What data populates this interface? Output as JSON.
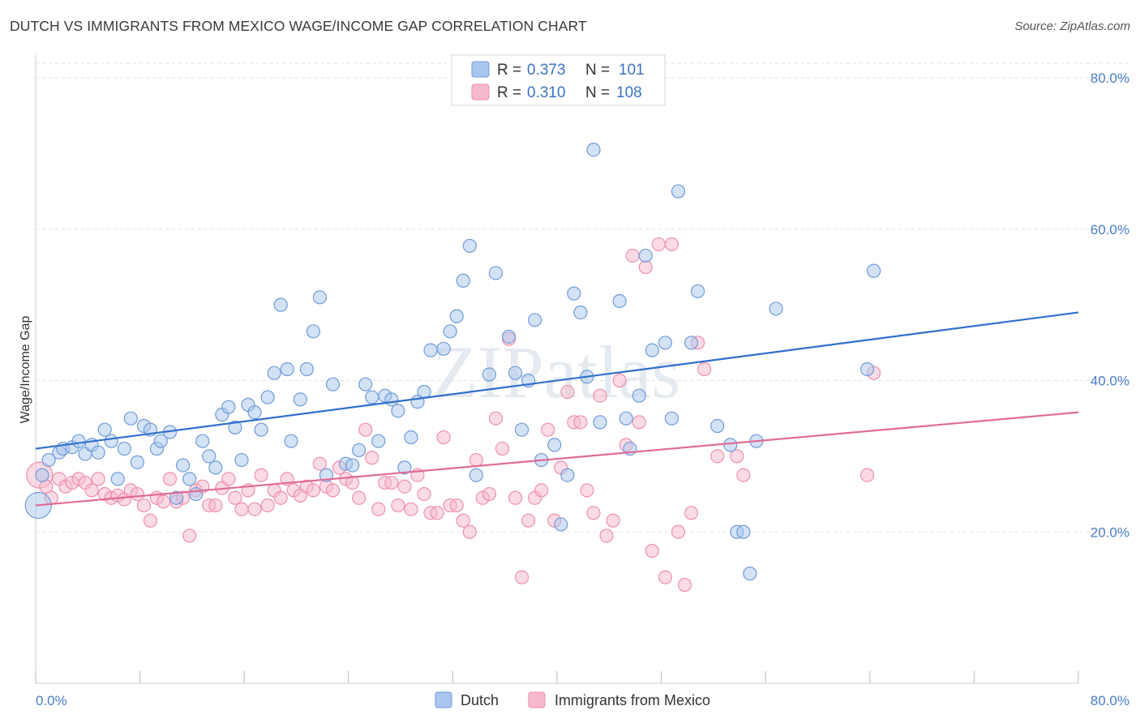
{
  "title": "DUTCH VS IMMIGRANTS FROM MEXICO WAGE/INCOME GAP CORRELATION CHART",
  "source": "Source: ZipAtlas.com",
  "watermark": "ZIPatlas",
  "colors": {
    "dutch_fill": "#a9c6ee",
    "dutch_stroke": "#6f9bd8",
    "dutch_line": "#2f6fce",
    "mexico_fill": "#f6b8cb",
    "mexico_stroke": "#ee8fae",
    "mexico_line": "#e06b95",
    "tick_text": "#4a7cc9",
    "grid": "#e2e2e2"
  },
  "legend_stats": [
    {
      "r_label": "R = ",
      "r_value": "0.373",
      "n_label": "N = ",
      "n_value": "101"
    },
    {
      "r_label": "R = ",
      "r_value": "0.310",
      "n_label": "N = ",
      "n_value": "108"
    }
  ],
  "chart_data": {
    "type": "scatter",
    "title": "DUTCH VS IMMIGRANTS FROM MEXICO WAGE/INCOME GAP CORRELATION CHART",
    "xlabel": "",
    "ylabel": "Wage/Income Gap",
    "xlim": [
      0,
      80
    ],
    "ylim": [
      0,
      83
    ],
    "x_tick_labels": [
      "0.0%",
      "80.0%"
    ],
    "y_ticks": [
      20,
      40,
      60,
      80
    ],
    "y_tick_labels": [
      "20.0%",
      "40.0%",
      "60.0%",
      "80.0%"
    ],
    "grid": true,
    "legend_position": "top-center and bottom",
    "series": [
      {
        "name": "Dutch",
        "R": 0.373,
        "N": 101,
        "trend": {
          "x": [
            0,
            80
          ],
          "y": [
            31.0,
            49.0
          ]
        },
        "points": [
          [
            0.2,
            23.5
          ],
          [
            0.5,
            27.5
          ],
          [
            1.0,
            29.5
          ],
          [
            1.8,
            30.5
          ],
          [
            2.1,
            31.0
          ],
          [
            2.8,
            31.2
          ],
          [
            3.3,
            32.0
          ],
          [
            3.8,
            30.3
          ],
          [
            4.3,
            31.5
          ],
          [
            4.8,
            30.5
          ],
          [
            5.3,
            33.5
          ],
          [
            5.8,
            32.0
          ],
          [
            6.3,
            27.0
          ],
          [
            6.8,
            31.0
          ],
          [
            7.3,
            35.0
          ],
          [
            7.8,
            29.2
          ],
          [
            8.3,
            34.0
          ],
          [
            8.8,
            33.5
          ],
          [
            9.3,
            31.0
          ],
          [
            9.6,
            32.0
          ],
          [
            10.3,
            33.2
          ],
          [
            10.8,
            24.5
          ],
          [
            11.3,
            28.8
          ],
          [
            11.8,
            27.0
          ],
          [
            12.3,
            25.0
          ],
          [
            12.8,
            32.0
          ],
          [
            13.3,
            30.0
          ],
          [
            13.8,
            28.5
          ],
          [
            14.3,
            35.5
          ],
          [
            14.8,
            36.5
          ],
          [
            15.3,
            33.8
          ],
          [
            15.8,
            29.5
          ],
          [
            16.3,
            36.8
          ],
          [
            16.8,
            35.8
          ],
          [
            17.3,
            33.5
          ],
          [
            17.8,
            37.8
          ],
          [
            18.3,
            41.0
          ],
          [
            18.8,
            50.0
          ],
          [
            19.3,
            41.5
          ],
          [
            19.6,
            32.0
          ],
          [
            20.3,
            37.5
          ],
          [
            20.8,
            41.5
          ],
          [
            21.3,
            46.5
          ],
          [
            21.8,
            51.0
          ],
          [
            22.3,
            27.5
          ],
          [
            22.8,
            39.5
          ],
          [
            23.8,
            29.0
          ],
          [
            24.3,
            28.8
          ],
          [
            24.8,
            30.8
          ],
          [
            25.3,
            39.5
          ],
          [
            25.8,
            37.8
          ],
          [
            26.3,
            32.0
          ],
          [
            26.8,
            38.0
          ],
          [
            27.3,
            37.5
          ],
          [
            27.8,
            36.0
          ],
          [
            28.3,
            28.5
          ],
          [
            28.8,
            32.5
          ],
          [
            29.3,
            37.2
          ],
          [
            29.8,
            38.5
          ],
          [
            30.3,
            44.0
          ],
          [
            31.3,
            44.2
          ],
          [
            31.8,
            46.5
          ],
          [
            32.3,
            48.5
          ],
          [
            32.8,
            53.2
          ],
          [
            33.3,
            57.8
          ],
          [
            33.8,
            27.5
          ],
          [
            34.8,
            40.8
          ],
          [
            35.3,
            54.2
          ],
          [
            36.3,
            45.8
          ],
          [
            36.8,
            41.0
          ],
          [
            37.3,
            33.5
          ],
          [
            37.8,
            40.0
          ],
          [
            38.3,
            48.0
          ],
          [
            38.8,
            29.5
          ],
          [
            39.8,
            31.5
          ],
          [
            40.3,
            21.0
          ],
          [
            40.8,
            27.5
          ],
          [
            41.3,
            51.5
          ],
          [
            41.8,
            49.0
          ],
          [
            42.3,
            40.5
          ],
          [
            42.8,
            70.5
          ],
          [
            43.3,
            34.5
          ],
          [
            44.8,
            50.5
          ],
          [
            45.3,
            35.0
          ],
          [
            45.6,
            31.0
          ],
          [
            46.3,
            38.0
          ],
          [
            46.8,
            56.5
          ],
          [
            47.3,
            44.0
          ],
          [
            48.3,
            45.0
          ],
          [
            48.8,
            35.0
          ],
          [
            49.3,
            65.0
          ],
          [
            50.3,
            45.0
          ],
          [
            50.8,
            51.8
          ],
          [
            52.3,
            34.0
          ],
          [
            53.3,
            31.5
          ],
          [
            53.8,
            20.0
          ],
          [
            54.3,
            20.0
          ],
          [
            54.8,
            14.5
          ],
          [
            55.3,
            32.0
          ],
          [
            56.8,
            49.5
          ],
          [
            63.8,
            41.5
          ],
          [
            64.3,
            54.5
          ]
        ]
      },
      {
        "name": "Immigrants from Mexico",
        "R": 0.31,
        "N": 108,
        "trend": {
          "x": [
            0,
            80
          ],
          "y": [
            23.5,
            35.8
          ]
        },
        "points": [
          [
            0.3,
            27.5
          ],
          [
            0.8,
            26.0
          ],
          [
            1.2,
            24.5
          ],
          [
            1.8,
            27.0
          ],
          [
            2.3,
            26.0
          ],
          [
            2.8,
            26.5
          ],
          [
            3.3,
            27.0
          ],
          [
            3.8,
            26.5
          ],
          [
            4.3,
            25.5
          ],
          [
            4.8,
            27.0
          ],
          [
            5.3,
            25.0
          ],
          [
            5.8,
            24.5
          ],
          [
            6.3,
            24.8
          ],
          [
            6.8,
            24.3
          ],
          [
            7.3,
            25.5
          ],
          [
            7.8,
            25.0
          ],
          [
            8.3,
            23.5
          ],
          [
            8.8,
            21.5
          ],
          [
            9.3,
            24.5
          ],
          [
            9.8,
            24.0
          ],
          [
            10.3,
            27.0
          ],
          [
            10.8,
            24.0
          ],
          [
            11.3,
            24.5
          ],
          [
            11.8,
            19.5
          ],
          [
            12.3,
            25.5
          ],
          [
            12.8,
            26.0
          ],
          [
            13.3,
            23.5
          ],
          [
            13.8,
            23.5
          ],
          [
            14.3,
            25.8
          ],
          [
            14.8,
            27.0
          ],
          [
            15.3,
            24.5
          ],
          [
            15.8,
            23.0
          ],
          [
            16.3,
            25.5
          ],
          [
            16.8,
            23.0
          ],
          [
            17.3,
            27.5
          ],
          [
            17.8,
            23.5
          ],
          [
            18.3,
            25.5
          ],
          [
            18.8,
            24.5
          ],
          [
            19.3,
            27.0
          ],
          [
            19.8,
            25.5
          ],
          [
            20.3,
            24.8
          ],
          [
            20.8,
            26.0
          ],
          [
            21.3,
            25.5
          ],
          [
            21.8,
            29.0
          ],
          [
            22.3,
            26.0
          ],
          [
            22.8,
            25.5
          ],
          [
            23.3,
            28.5
          ],
          [
            23.8,
            27.0
          ],
          [
            24.3,
            26.5
          ],
          [
            24.8,
            24.5
          ],
          [
            25.3,
            33.5
          ],
          [
            25.8,
            29.8
          ],
          [
            26.3,
            23.0
          ],
          [
            26.8,
            26.5
          ],
          [
            27.3,
            26.5
          ],
          [
            27.8,
            23.5
          ],
          [
            28.3,
            26.0
          ],
          [
            28.8,
            23.0
          ],
          [
            29.3,
            27.5
          ],
          [
            29.8,
            25.0
          ],
          [
            30.3,
            22.5
          ],
          [
            30.8,
            22.5
          ],
          [
            31.3,
            32.5
          ],
          [
            31.8,
            23.5
          ],
          [
            32.3,
            23.5
          ],
          [
            32.8,
            21.5
          ],
          [
            33.3,
            20.0
          ],
          [
            33.8,
            29.5
          ],
          [
            34.3,
            24.5
          ],
          [
            34.8,
            25.0
          ],
          [
            35.3,
            35.0
          ],
          [
            35.8,
            31.0
          ],
          [
            36.3,
            45.5
          ],
          [
            36.8,
            24.5
          ],
          [
            37.3,
            14.0
          ],
          [
            37.8,
            21.5
          ],
          [
            38.3,
            24.5
          ],
          [
            38.8,
            25.5
          ],
          [
            39.3,
            33.5
          ],
          [
            39.8,
            21.5
          ],
          [
            40.3,
            28.5
          ],
          [
            40.8,
            38.5
          ],
          [
            41.3,
            34.5
          ],
          [
            41.8,
            34.5
          ],
          [
            42.3,
            25.5
          ],
          [
            42.8,
            22.5
          ],
          [
            43.3,
            38.0
          ],
          [
            43.8,
            19.5
          ],
          [
            44.3,
            21.5
          ],
          [
            44.8,
            40.0
          ],
          [
            45.3,
            31.5
          ],
          [
            45.8,
            56.5
          ],
          [
            46.3,
            34.5
          ],
          [
            46.8,
            55.0
          ],
          [
            47.3,
            17.5
          ],
          [
            47.8,
            58.0
          ],
          [
            48.3,
            14.0
          ],
          [
            48.8,
            58.0
          ],
          [
            49.3,
            20.0
          ],
          [
            49.8,
            13.0
          ],
          [
            50.3,
            22.5
          ],
          [
            50.8,
            45.0
          ],
          [
            51.3,
            41.5
          ],
          [
            52.3,
            30.0
          ],
          [
            53.8,
            30.0
          ],
          [
            54.3,
            27.5
          ],
          [
            63.8,
            27.5
          ],
          [
            64.3,
            41.0
          ]
        ]
      }
    ]
  },
  "bottom_legend": [
    "Dutch",
    "Immigrants from Mexico"
  ]
}
